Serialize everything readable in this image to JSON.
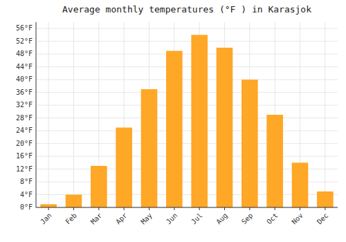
{
  "chart_data": {
    "type": "bar",
    "title": "Average monthly temperatures (°F ) in Karasjok",
    "categories": [
      "Jan",
      "Feb",
      "Mar",
      "Apr",
      "May",
      "Jun",
      "Jul",
      "Aug",
      "Sep",
      "Oct",
      "Nov",
      "Dec"
    ],
    "values": [
      1,
      4,
      13,
      25,
      37,
      49,
      54,
      50,
      40,
      29,
      14,
      5
    ],
    "color": "#FFA726",
    "ylim": [
      0,
      58
    ],
    "yticks": [
      {
        "value": 0,
        "label": "0°F"
      },
      {
        "value": 4,
        "label": "4°F"
      },
      {
        "value": 8,
        "label": "8°F"
      },
      {
        "value": 12,
        "label": "12°F"
      },
      {
        "value": 16,
        "label": "16°F"
      },
      {
        "value": 20,
        "label": "20°F"
      },
      {
        "value": 24,
        "label": "24°F"
      },
      {
        "value": 28,
        "label": "28°F"
      },
      {
        "value": 32,
        "label": "32°F"
      },
      {
        "value": 36,
        "label": "36°F"
      },
      {
        "value": 40,
        "label": "40°F"
      },
      {
        "value": 44,
        "label": "44°F"
      },
      {
        "value": 48,
        "label": "48°F"
      },
      {
        "value": 52,
        "label": "52°F"
      },
      {
        "value": 56,
        "label": "56°F"
      }
    ],
    "grid": true
  }
}
